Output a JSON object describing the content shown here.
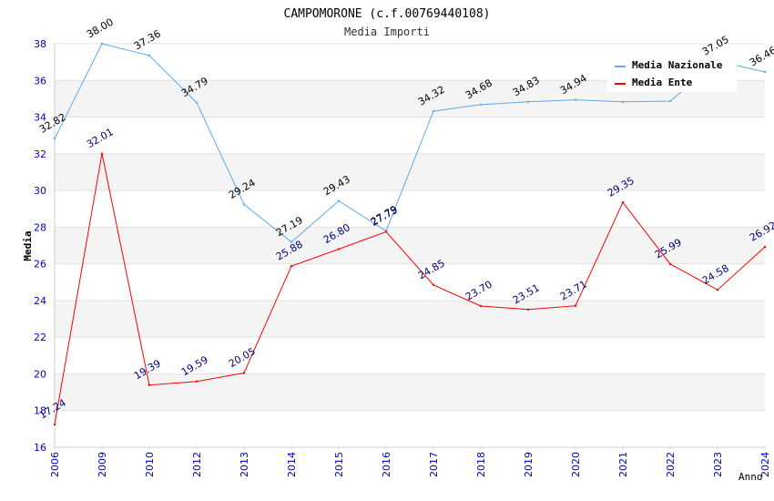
{
  "chart_data": {
    "type": "line",
    "title": "CAMPOMORONE (c.f.00769440108)",
    "subtitle": "Media Importi",
    "xlabel": "Anno",
    "ylabel": "Media",
    "ylim": [
      16,
      38
    ],
    "yticks": [
      "16",
      "18",
      "20",
      "22",
      "24",
      "26",
      "28",
      "30",
      "32",
      "34",
      "36",
      "38"
    ],
    "categories": [
      "2006",
      "2009",
      "2010",
      "2012",
      "2013",
      "2014",
      "2015",
      "2016",
      "2017",
      "2018",
      "2019",
      "2020",
      "2021",
      "2022",
      "2023",
      "2024"
    ],
    "grid": true,
    "legend_position": "top-right",
    "series": [
      {
        "name": "Media Nazionale",
        "color": "#5ea9e8",
        "label_color": "#000000",
        "values": [
          32.82,
          38.0,
          37.36,
          34.79,
          29.24,
          27.19,
          29.43,
          27.79,
          34.32,
          34.68,
          34.83,
          34.94,
          34.83,
          34.87,
          37.05,
          36.46
        ],
        "labels": [
          "32.82",
          "38.00",
          "37.36",
          "34.79",
          "29.24",
          "27.19",
          "29.43",
          "27.79",
          "34.32",
          "34.68",
          "34.83",
          "34.94",
          "",
          "",
          "37.05",
          "36.46"
        ]
      },
      {
        "name": "Media Ente",
        "color": "#ff0000",
        "label_color": "#000080",
        "values": [
          17.24,
          32.01,
          19.39,
          19.59,
          20.05,
          25.88,
          26.8,
          27.75,
          24.85,
          23.7,
          23.51,
          23.71,
          29.35,
          25.99,
          24.58,
          26.92
        ],
        "labels": [
          "17.24",
          "32.01",
          "19.39",
          "19.59",
          "20.05",
          "25.88",
          "26.80",
          "27.75",
          "24.85",
          "23.70",
          "23.51",
          "23.71",
          "29.35",
          "25.99",
          "24.58",
          "26.92"
        ]
      }
    ]
  }
}
